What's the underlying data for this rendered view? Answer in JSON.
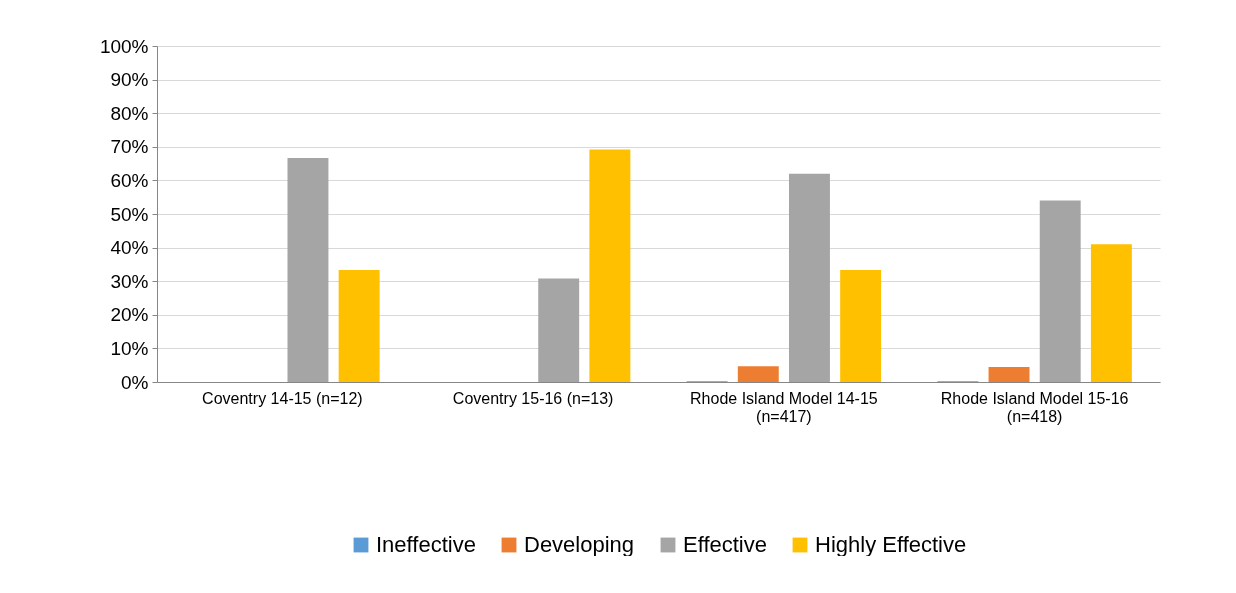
{
  "chart_data": {
    "type": "bar",
    "categories": [
      "Coventry 14-15 (n=12)",
      "Coventry 15-16 (n=13)",
      "Rhode Island Model 14-15 (n=417)",
      "Rhode Island Model 15-16 (n=418)"
    ],
    "series": [
      {
        "name": "Ineffective",
        "color": "#5b9bd5",
        "values": [
          0,
          0,
          0.2,
          0.2
        ]
      },
      {
        "name": "Developing",
        "color": "#ed7d31",
        "values": [
          0,
          0,
          4.7,
          4.5
        ]
      },
      {
        "name": "Effective",
        "color": "#a5a5a5",
        "values": [
          66.7,
          30.8,
          62,
          54
        ]
      },
      {
        "name": "Highly Effective",
        "color": "#ffc000",
        "values": [
          33.3,
          69.2,
          33.3,
          41
        ]
      }
    ],
    "ylim": [
      0,
      100
    ],
    "yticks": [
      {
        "value": 0,
        "label": "0%"
      },
      {
        "value": 10,
        "label": "10%"
      },
      {
        "value": 20,
        "label": "20%"
      },
      {
        "value": 30,
        "label": "30%"
      },
      {
        "value": 40,
        "label": "40%"
      },
      {
        "value": 50,
        "label": "50%"
      },
      {
        "value": 60,
        "label": "60%"
      },
      {
        "value": 70,
        "label": "70%"
      },
      {
        "value": 80,
        "label": "80%"
      },
      {
        "value": 90,
        "label": "90%"
      },
      {
        "value": 100,
        "label": "100%"
      }
    ],
    "grid": true,
    "legend": "bottom"
  }
}
